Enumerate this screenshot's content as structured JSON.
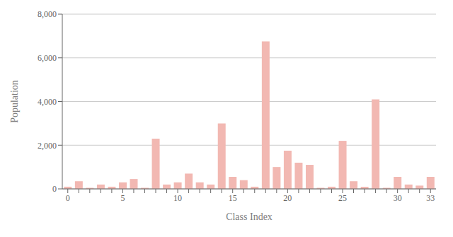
{
  "chart_data": {
    "type": "bar",
    "xlabel": "Class Index",
    "ylabel": "Population",
    "categories": [
      "0",
      null,
      null,
      null,
      null,
      "5",
      null,
      null,
      null,
      null,
      "10",
      null,
      null,
      null,
      null,
      "15",
      null,
      null,
      null,
      null,
      "20",
      null,
      null,
      null,
      null,
      "25",
      null,
      null,
      null,
      null,
      "30",
      null,
      null,
      "33"
    ],
    "values": [
      100,
      350,
      50,
      200,
      100,
      300,
      450,
      50,
      2300,
      200,
      300,
      700,
      300,
      200,
      3000,
      550,
      400,
      100,
      6750,
      1000,
      1750,
      1200,
      1100,
      50,
      100,
      2200,
      350,
      100,
      4100,
      50,
      550,
      200,
      150,
      550
    ],
    "color": "#f2b8b2",
    "ylim": [
      0,
      8000
    ],
    "yticks": [
      0,
      {
        "value": 2000,
        "label": "2,000"
      },
      {
        "value": 4000,
        "label": "4,000"
      },
      {
        "value": 6000,
        "label": "6,000"
      },
      {
        "value": 8000,
        "label": "8,000"
      }
    ],
    "grid": true
  }
}
